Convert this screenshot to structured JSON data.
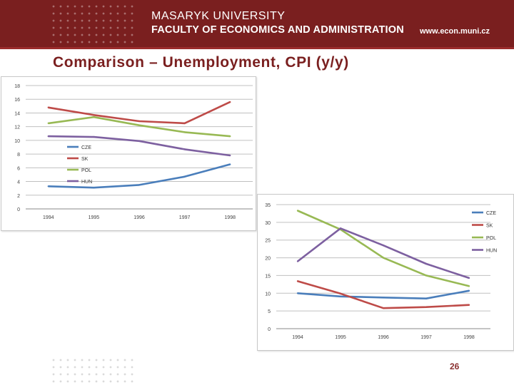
{
  "header": {
    "university": "MASARYK UNIVERSITY",
    "faculty": "FACULTY OF ECONOMICS AND ADMINISTRATION",
    "website": "www.econ.muni.cz"
  },
  "slide": {
    "title": "Comparison – Unemployment, CPI (y/y)",
    "page_number": "26"
  },
  "colors": {
    "brand": "#7a1f1f",
    "CZE": "#4a7ebb",
    "SK": "#be4b48",
    "POL": "#98b954",
    "HUN": "#7d60a0"
  },
  "chart_data": [
    {
      "type": "line",
      "title": "",
      "xlabel": "",
      "ylabel": "",
      "categories": [
        "1994",
        "1995",
        "1996",
        "1997",
        "1998"
      ],
      "ylim": [
        0,
        18
      ],
      "yticks": [
        "0",
        "2",
        "4",
        "6",
        "8",
        "10",
        "12",
        "14",
        "16",
        "18"
      ],
      "grid": true,
      "legend": "inside-left",
      "series": [
        {
          "name": "CZE",
          "values": [
            3.3,
            3.1,
            3.5,
            4.7,
            6.5
          ]
        },
        {
          "name": "SK",
          "values": [
            14.8,
            13.7,
            12.8,
            12.5,
            15.6
          ]
        },
        {
          "name": "POL",
          "values": [
            12.5,
            13.4,
            12.2,
            11.2,
            10.6
          ]
        },
        {
          "name": "HUN",
          "values": [
            10.6,
            10.5,
            9.9,
            8.7,
            7.8
          ]
        }
      ]
    },
    {
      "type": "line",
      "title": "",
      "xlabel": "",
      "ylabel": "",
      "categories": [
        "1994",
        "1995",
        "1996",
        "1997",
        "1998"
      ],
      "ylim": [
        0,
        35
      ],
      "yticks": [
        "0",
        "5",
        "10",
        "15",
        "20",
        "25",
        "30",
        "35"
      ],
      "grid": true,
      "legend": "right",
      "series": [
        {
          "name": "CZE",
          "values": [
            10.0,
            9.1,
            8.8,
            8.5,
            10.7
          ]
        },
        {
          "name": "SK",
          "values": [
            13.4,
            9.9,
            5.8,
            6.1,
            6.7
          ]
        },
        {
          "name": "POL",
          "values": [
            33.3,
            28.0,
            20.0,
            15.0,
            12.0
          ]
        },
        {
          "name": "HUN",
          "values": [
            19.0,
            28.3,
            23.5,
            18.3,
            14.3
          ]
        }
      ]
    }
  ]
}
